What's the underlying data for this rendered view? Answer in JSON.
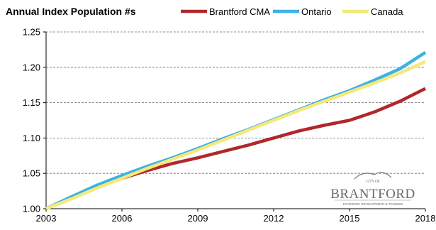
{
  "chart_data": {
    "type": "line",
    "title": "Annual Index Population #s",
    "xlabel": "",
    "ylabel": "",
    "x": [
      2003,
      2004,
      2005,
      2006,
      2007,
      2008,
      2009,
      2010,
      2011,
      2012,
      2013,
      2014,
      2015,
      2016,
      2017,
      2018
    ],
    "x_ticks": [
      "2003",
      "2006",
      "2009",
      "2012",
      "2015",
      "2018"
    ],
    "y_ticks": [
      "1.00",
      "1.05",
      "1.10",
      "1.15",
      "1.20",
      "1.25"
    ],
    "xlim": [
      2003,
      2018
    ],
    "ylim": [
      1.0,
      1.25
    ],
    "grid": "horizontal dashed",
    "legend_position": "top-right",
    "series": [
      {
        "name": "Brantford CMA",
        "color": "#b0282b",
        "values": [
          1.0,
          1.015,
          1.03,
          1.043,
          1.054,
          1.064,
          1.072,
          1.081,
          1.09,
          1.1,
          1.11,
          1.118,
          1.125,
          1.137,
          1.152,
          1.17
        ]
      },
      {
        "name": "Ontario",
        "color": "#3db2e5",
        "values": [
          1.0,
          1.017,
          1.033,
          1.047,
          1.06,
          1.072,
          1.085,
          1.099,
          1.112,
          1.126,
          1.14,
          1.154,
          1.167,
          1.182,
          1.198,
          1.221
        ]
      },
      {
        "name": "Canada",
        "color": "#f4e97a",
        "values": [
          1.0,
          1.014,
          1.029,
          1.043,
          1.057,
          1.07,
          1.083,
          1.097,
          1.111,
          1.125,
          1.139,
          1.152,
          1.165,
          1.178,
          1.192,
          1.208
        ]
      }
    ]
  },
  "logo": {
    "top_text": "CITY OF",
    "name": "BRANTFORD",
    "subtitle": "ECONOMIC DEVELOPMENT & TOURISM"
  }
}
